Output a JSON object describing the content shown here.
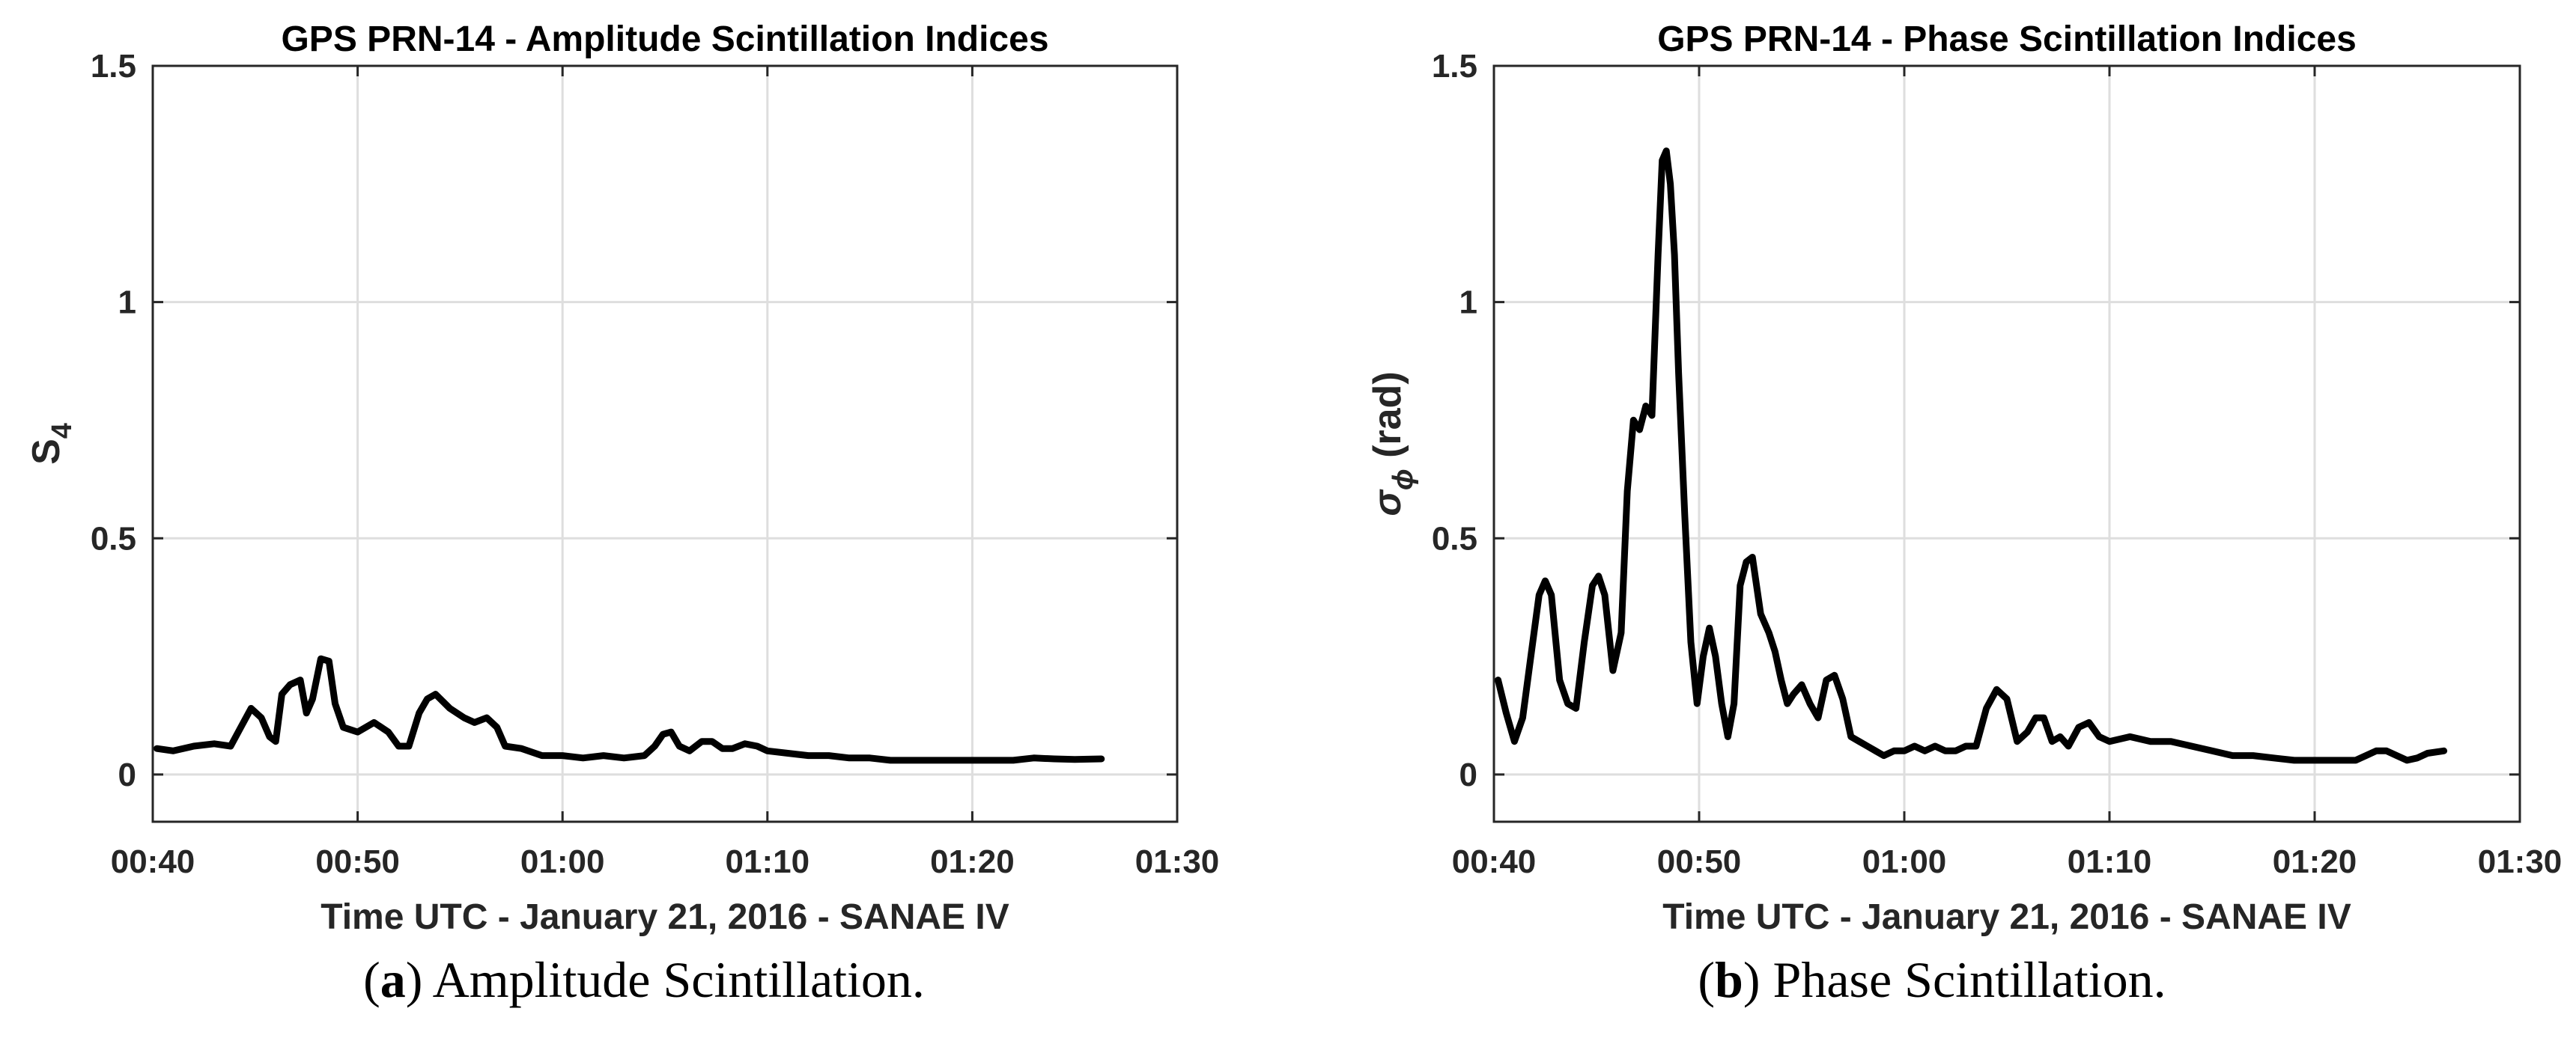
{
  "chart_data": [
    {
      "type": "line",
      "title": "GPS PRN-14 - Amplitude Scintillation Indices",
      "xlabel": "Time UTC - January 21, 2016 - SANAE IV",
      "ylabel_main": "S",
      "ylabel_sub": "4",
      "ylabel_tail": "",
      "xlim": [
        40,
        90
      ],
      "ylim": [
        -0.1,
        1.5
      ],
      "xticks": [
        40,
        50,
        60,
        70,
        80,
        90
      ],
      "xtick_labels": [
        "00:40",
        "00:50",
        "01:00",
        "01:10",
        "01:20",
        "01:30"
      ],
      "yticks": [
        0,
        0.5,
        1,
        1.5
      ],
      "ytick_labels": [
        "0",
        "0.5",
        "1",
        "1.5"
      ],
      "grid": true,
      "series": [
        {
          "name": "S4",
          "x": [
            40.2,
            41,
            42,
            43,
            43.8,
            44.3,
            44.8,
            45.3,
            45.7,
            46,
            46.3,
            46.7,
            47.2,
            47.5,
            47.8,
            48.2,
            48.6,
            48.9,
            49.3,
            50,
            50.8,
            51.5,
            52,
            52.5,
            53.0,
            53.4,
            53.8,
            54.5,
            55.2,
            55.7,
            56.3,
            56.8,
            57.2,
            58,
            59,
            60,
            61,
            62,
            63,
            64,
            64.5,
            64.9,
            65.3,
            65.7,
            66.2,
            66.8,
            67.3,
            67.8,
            68.3,
            68.9,
            69.5,
            70,
            71,
            72,
            73,
            74,
            75,
            76,
            77,
            78,
            79,
            80,
            81,
            82,
            83,
            84,
            85,
            86.3
          ],
          "y": [
            0.055,
            0.05,
            0.06,
            0.065,
            0.06,
            0.1,
            0.14,
            0.12,
            0.08,
            0.07,
            0.17,
            0.19,
            0.2,
            0.13,
            0.16,
            0.245,
            0.24,
            0.15,
            0.1,
            0.09,
            0.11,
            0.09,
            0.06,
            0.06,
            0.13,
            0.16,
            0.17,
            0.14,
            0.12,
            0.11,
            0.12,
            0.1,
            0.06,
            0.055,
            0.04,
            0.04,
            0.035,
            0.04,
            0.035,
            0.04,
            0.06,
            0.085,
            0.09,
            0.06,
            0.05,
            0.07,
            0.07,
            0.055,
            0.055,
            0.065,
            0.06,
            0.05,
            0.045,
            0.04,
            0.04,
            0.035,
            0.035,
            0.03,
            0.03,
            0.03,
            0.03,
            0.03,
            0.03,
            0.03,
            0.035,
            0.033,
            0.032,
            0.033
          ]
        }
      ]
    },
    {
      "type": "line",
      "title": "GPS PRN-14 - Phase Scintillation Indices",
      "xlabel": "Time UTC - January 21, 2016 - SANAE IV",
      "ylabel_main": "σ",
      "ylabel_sub": "ϕ",
      "ylabel_tail": " (rad)",
      "xlim": [
        40,
        90
      ],
      "ylim": [
        -0.1,
        1.5
      ],
      "xticks": [
        40,
        50,
        60,
        70,
        80,
        90
      ],
      "xtick_labels": [
        "00:40",
        "00:50",
        "01:00",
        "01:10",
        "01:20",
        "01:30"
      ],
      "yticks": [
        0,
        0.5,
        1,
        1.5
      ],
      "ytick_labels": [
        "0",
        "0.5",
        "1",
        "1.5"
      ],
      "grid": true,
      "series": [
        {
          "name": "sigma_phi",
          "x": [
            40.2,
            40.6,
            41.0,
            41.4,
            41.8,
            42.2,
            42.5,
            42.8,
            43.2,
            43.6,
            44.0,
            44.4,
            44.8,
            45.1,
            45.4,
            45.8,
            46.2,
            46.5,
            46.8,
            47.1,
            47.4,
            47.7,
            48.0,
            48.2,
            48.4,
            48.6,
            48.8,
            49.0,
            49.3,
            49.6,
            49.9,
            50.2,
            50.5,
            50.8,
            51.1,
            51.4,
            51.7,
            52.0,
            52.3,
            52.6,
            53.0,
            53.4,
            53.7,
            54.0,
            54.3,
            54.6,
            55.0,
            55.4,
            55.8,
            56.2,
            56.6,
            57.0,
            57.4,
            57.8,
            58.2,
            58.6,
            59.0,
            59.5,
            60.0,
            60.5,
            61.0,
            61.5,
            62.0,
            62.5,
            63.0,
            63.5,
            64.0,
            64.5,
            65.0,
            65.5,
            66.0,
            66.4,
            66.8,
            67.2,
            67.6,
            68.0,
            68.5,
            69.0,
            69.5,
            70.0,
            71.0,
            72.0,
            73.0,
            74.0,
            75.0,
            76.0,
            77.0,
            78.0,
            79.0,
            80.0,
            81.0,
            82.0,
            82.5,
            83.0,
            83.5,
            84.0,
            84.5,
            85.0,
            85.5,
            86.3
          ],
          "y": [
            0.2,
            0.13,
            0.07,
            0.12,
            0.25,
            0.38,
            0.41,
            0.38,
            0.2,
            0.15,
            0.14,
            0.28,
            0.4,
            0.42,
            0.38,
            0.22,
            0.3,
            0.6,
            0.75,
            0.73,
            0.78,
            0.76,
            1.1,
            1.3,
            1.32,
            1.25,
            1.1,
            0.85,
            0.55,
            0.28,
            0.15,
            0.25,
            0.31,
            0.25,
            0.15,
            0.08,
            0.15,
            0.4,
            0.45,
            0.46,
            0.34,
            0.3,
            0.26,
            0.2,
            0.15,
            0.17,
            0.19,
            0.15,
            0.12,
            0.2,
            0.21,
            0.16,
            0.08,
            0.07,
            0.06,
            0.05,
            0.04,
            0.05,
            0.05,
            0.06,
            0.05,
            0.06,
            0.05,
            0.05,
            0.06,
            0.06,
            0.14,
            0.18,
            0.16,
            0.07,
            0.09,
            0.12,
            0.12,
            0.07,
            0.08,
            0.06,
            0.1,
            0.11,
            0.08,
            0.07,
            0.08,
            0.07,
            0.07,
            0.06,
            0.05,
            0.04,
            0.04,
            0.035,
            0.03,
            0.03,
            0.03,
            0.03,
            0.04,
            0.05,
            0.05,
            0.04,
            0.03,
            0.035,
            0.045,
            0.05
          ]
        }
      ]
    }
  ],
  "captions": [
    {
      "letter": "a",
      "text": " Amplitude Scintillation."
    },
    {
      "letter": "b",
      "text": " Phase Scintillation."
    }
  ]
}
